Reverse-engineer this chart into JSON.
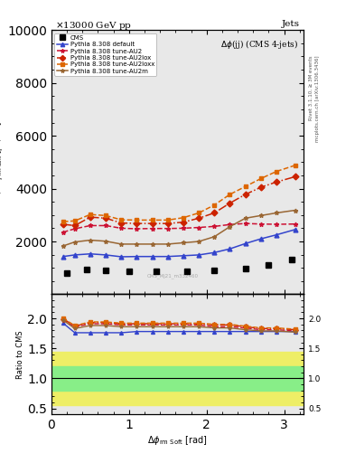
{
  "cms_data": {
    "x": [
      0.2,
      0.45,
      0.7,
      1.0,
      1.35,
      1.75,
      2.1,
      2.5,
      2.8,
      3.1
    ],
    "y": [
      800,
      950,
      900,
      870,
      870,
      880,
      920,
      980,
      1100,
      1300
    ],
    "color": "black",
    "marker": "s",
    "label": "CMS"
  },
  "pythia_default": {
    "x": [
      0.15,
      0.3,
      0.5,
      0.7,
      0.9,
      1.1,
      1.3,
      1.5,
      1.7,
      1.9,
      2.1,
      2.3,
      2.5,
      2.7,
      2.9,
      3.14
    ],
    "y": [
      1430,
      1490,
      1530,
      1490,
      1420,
      1430,
      1430,
      1430,
      1460,
      1490,
      1580,
      1720,
      1920,
      2100,
      2250,
      2450
    ],
    "color": "#3344cc",
    "marker": "^",
    "linestyle": "-",
    "label": "Pythia 8.308 default"
  },
  "pythia_AU2": {
    "x": [
      0.15,
      0.3,
      0.5,
      0.7,
      0.9,
      1.1,
      1.3,
      1.5,
      1.7,
      1.9,
      2.1,
      2.3,
      2.5,
      2.7,
      2.9,
      3.14
    ],
    "y": [
      2350,
      2480,
      2600,
      2600,
      2500,
      2480,
      2490,
      2490,
      2500,
      2530,
      2570,
      2640,
      2680,
      2660,
      2650,
      2660
    ],
    "color": "#cc1133",
    "marker": "*",
    "linestyle": "--",
    "label": "Pythia 8.308 tune-AU2"
  },
  "pythia_AU2lox": {
    "x": [
      0.15,
      0.3,
      0.5,
      0.7,
      0.9,
      1.1,
      1.3,
      1.5,
      1.7,
      1.9,
      2.1,
      2.3,
      2.5,
      2.7,
      2.9,
      3.14
    ],
    "y": [
      2650,
      2600,
      2920,
      2880,
      2700,
      2680,
      2680,
      2680,
      2730,
      2880,
      3080,
      3450,
      3780,
      4050,
      4250,
      4450
    ],
    "color": "#cc2200",
    "marker": "D",
    "linestyle": "-.",
    "label": "Pythia 8.308 tune-AU2lox"
  },
  "pythia_AU2loxx": {
    "x": [
      0.15,
      0.3,
      0.5,
      0.7,
      0.9,
      1.1,
      1.3,
      1.5,
      1.7,
      1.9,
      2.1,
      2.3,
      2.5,
      2.7,
      2.9,
      3.14
    ],
    "y": [
      2750,
      2780,
      3020,
      2980,
      2820,
      2810,
      2810,
      2810,
      2900,
      3080,
      3380,
      3780,
      4080,
      4380,
      4650,
      4880
    ],
    "color": "#dd6600",
    "marker": "s",
    "linestyle": "--",
    "label": "Pythia 8.308 tune-AU2loxx"
  },
  "pythia_AU2m": {
    "x": [
      0.15,
      0.3,
      0.5,
      0.7,
      0.9,
      1.1,
      1.3,
      1.5,
      1.7,
      1.9,
      2.1,
      2.3,
      2.5,
      2.7,
      2.9,
      3.14
    ],
    "y": [
      1830,
      1980,
      2050,
      2010,
      1900,
      1900,
      1900,
      1900,
      1950,
      2000,
      2180,
      2560,
      2880,
      2980,
      3080,
      3180
    ],
    "color": "#996633",
    "marker": "*",
    "linestyle": "-",
    "label": "Pythia 8.308 tune-AU2m"
  },
  "ratio_default": {
    "x": [
      0.15,
      0.3,
      0.5,
      0.7,
      0.9,
      1.1,
      1.3,
      1.5,
      1.7,
      1.9,
      2.1,
      2.3,
      2.5,
      2.7,
      2.9,
      3.14
    ],
    "y": [
      1.92,
      1.76,
      1.76,
      1.76,
      1.76,
      1.78,
      1.78,
      1.78,
      1.78,
      1.78,
      1.78,
      1.78,
      1.78,
      1.78,
      1.78,
      1.78
    ]
  },
  "ratio_AU2": {
    "x": [
      0.15,
      0.3,
      0.5,
      0.7,
      0.9,
      1.1,
      1.3,
      1.5,
      1.7,
      1.9,
      2.1,
      2.3,
      2.5,
      2.7,
      2.9,
      3.14
    ],
    "y": [
      1.97,
      1.86,
      1.91,
      1.91,
      1.89,
      1.89,
      1.89,
      1.89,
      1.89,
      1.89,
      1.86,
      1.86,
      1.84,
      1.81,
      1.81,
      1.79
    ]
  },
  "ratio_AU2lox": {
    "x": [
      0.15,
      0.3,
      0.5,
      0.7,
      0.9,
      1.1,
      1.3,
      1.5,
      1.7,
      1.9,
      2.1,
      2.3,
      2.5,
      2.7,
      2.9,
      3.14
    ],
    "y": [
      1.99,
      1.87,
      1.93,
      1.93,
      1.91,
      1.91,
      1.91,
      1.91,
      1.91,
      1.91,
      1.89,
      1.89,
      1.86,
      1.83,
      1.83,
      1.81
    ]
  },
  "ratio_AU2loxx": {
    "x": [
      0.15,
      0.3,
      0.5,
      0.7,
      0.9,
      1.1,
      1.3,
      1.5,
      1.7,
      1.9,
      2.1,
      2.3,
      2.5,
      2.7,
      2.9,
      3.14
    ],
    "y": [
      2.0,
      1.88,
      1.94,
      1.94,
      1.92,
      1.92,
      1.92,
      1.92,
      1.92,
      1.92,
      1.9,
      1.9,
      1.87,
      1.84,
      1.84,
      1.82
    ]
  },
  "ratio_AU2m": {
    "x": [
      0.15,
      0.3,
      0.5,
      0.7,
      0.9,
      1.1,
      1.3,
      1.5,
      1.7,
      1.9,
      2.1,
      2.3,
      2.5,
      2.7,
      2.9,
      3.14
    ],
    "y": [
      1.97,
      1.83,
      1.88,
      1.88,
      1.86,
      1.86,
      1.86,
      1.86,
      1.86,
      1.86,
      1.84,
      1.84,
      1.81,
      1.79,
      1.79,
      1.77
    ]
  },
  "green_band": {
    "y_low": 0.8,
    "y_high": 1.2,
    "color": "#88ee88"
  },
  "yellow_band": {
    "y_low": 0.55,
    "y_high": 1.45,
    "color": "#eeee66"
  },
  "ylim_main": [
    0,
    10000
  ],
  "ylim_ratio": [
    0.4,
    2.4
  ],
  "yticks_main": [
    2000,
    4000,
    6000,
    8000,
    10000
  ],
  "yticks_ratio": [
    0.5,
    1.0,
    1.5,
    2.0
  ],
  "xlim": [
    0.0,
    3.25
  ],
  "bg_color": "#e8e8e8",
  "title_left": "×13000 GeV pp",
  "title_right": "Jets",
  "plot_title": "Δϕ(jj) (CMS 4-jets)",
  "watermark1": "Rivet 3.1.10, ≥ 3M events",
  "watermark2": "mcplots.cern.ch [arXiv:1306.3436]",
  "cms_stamp": "CMS_Mj21_m332460",
  "ylabel_main": "dσ/dΔϕ_rm Soft [pb/rad]",
  "ylabel_ratio": "Ratio to CMS",
  "xlabel": "Δϕ_rm Soft [rad]"
}
